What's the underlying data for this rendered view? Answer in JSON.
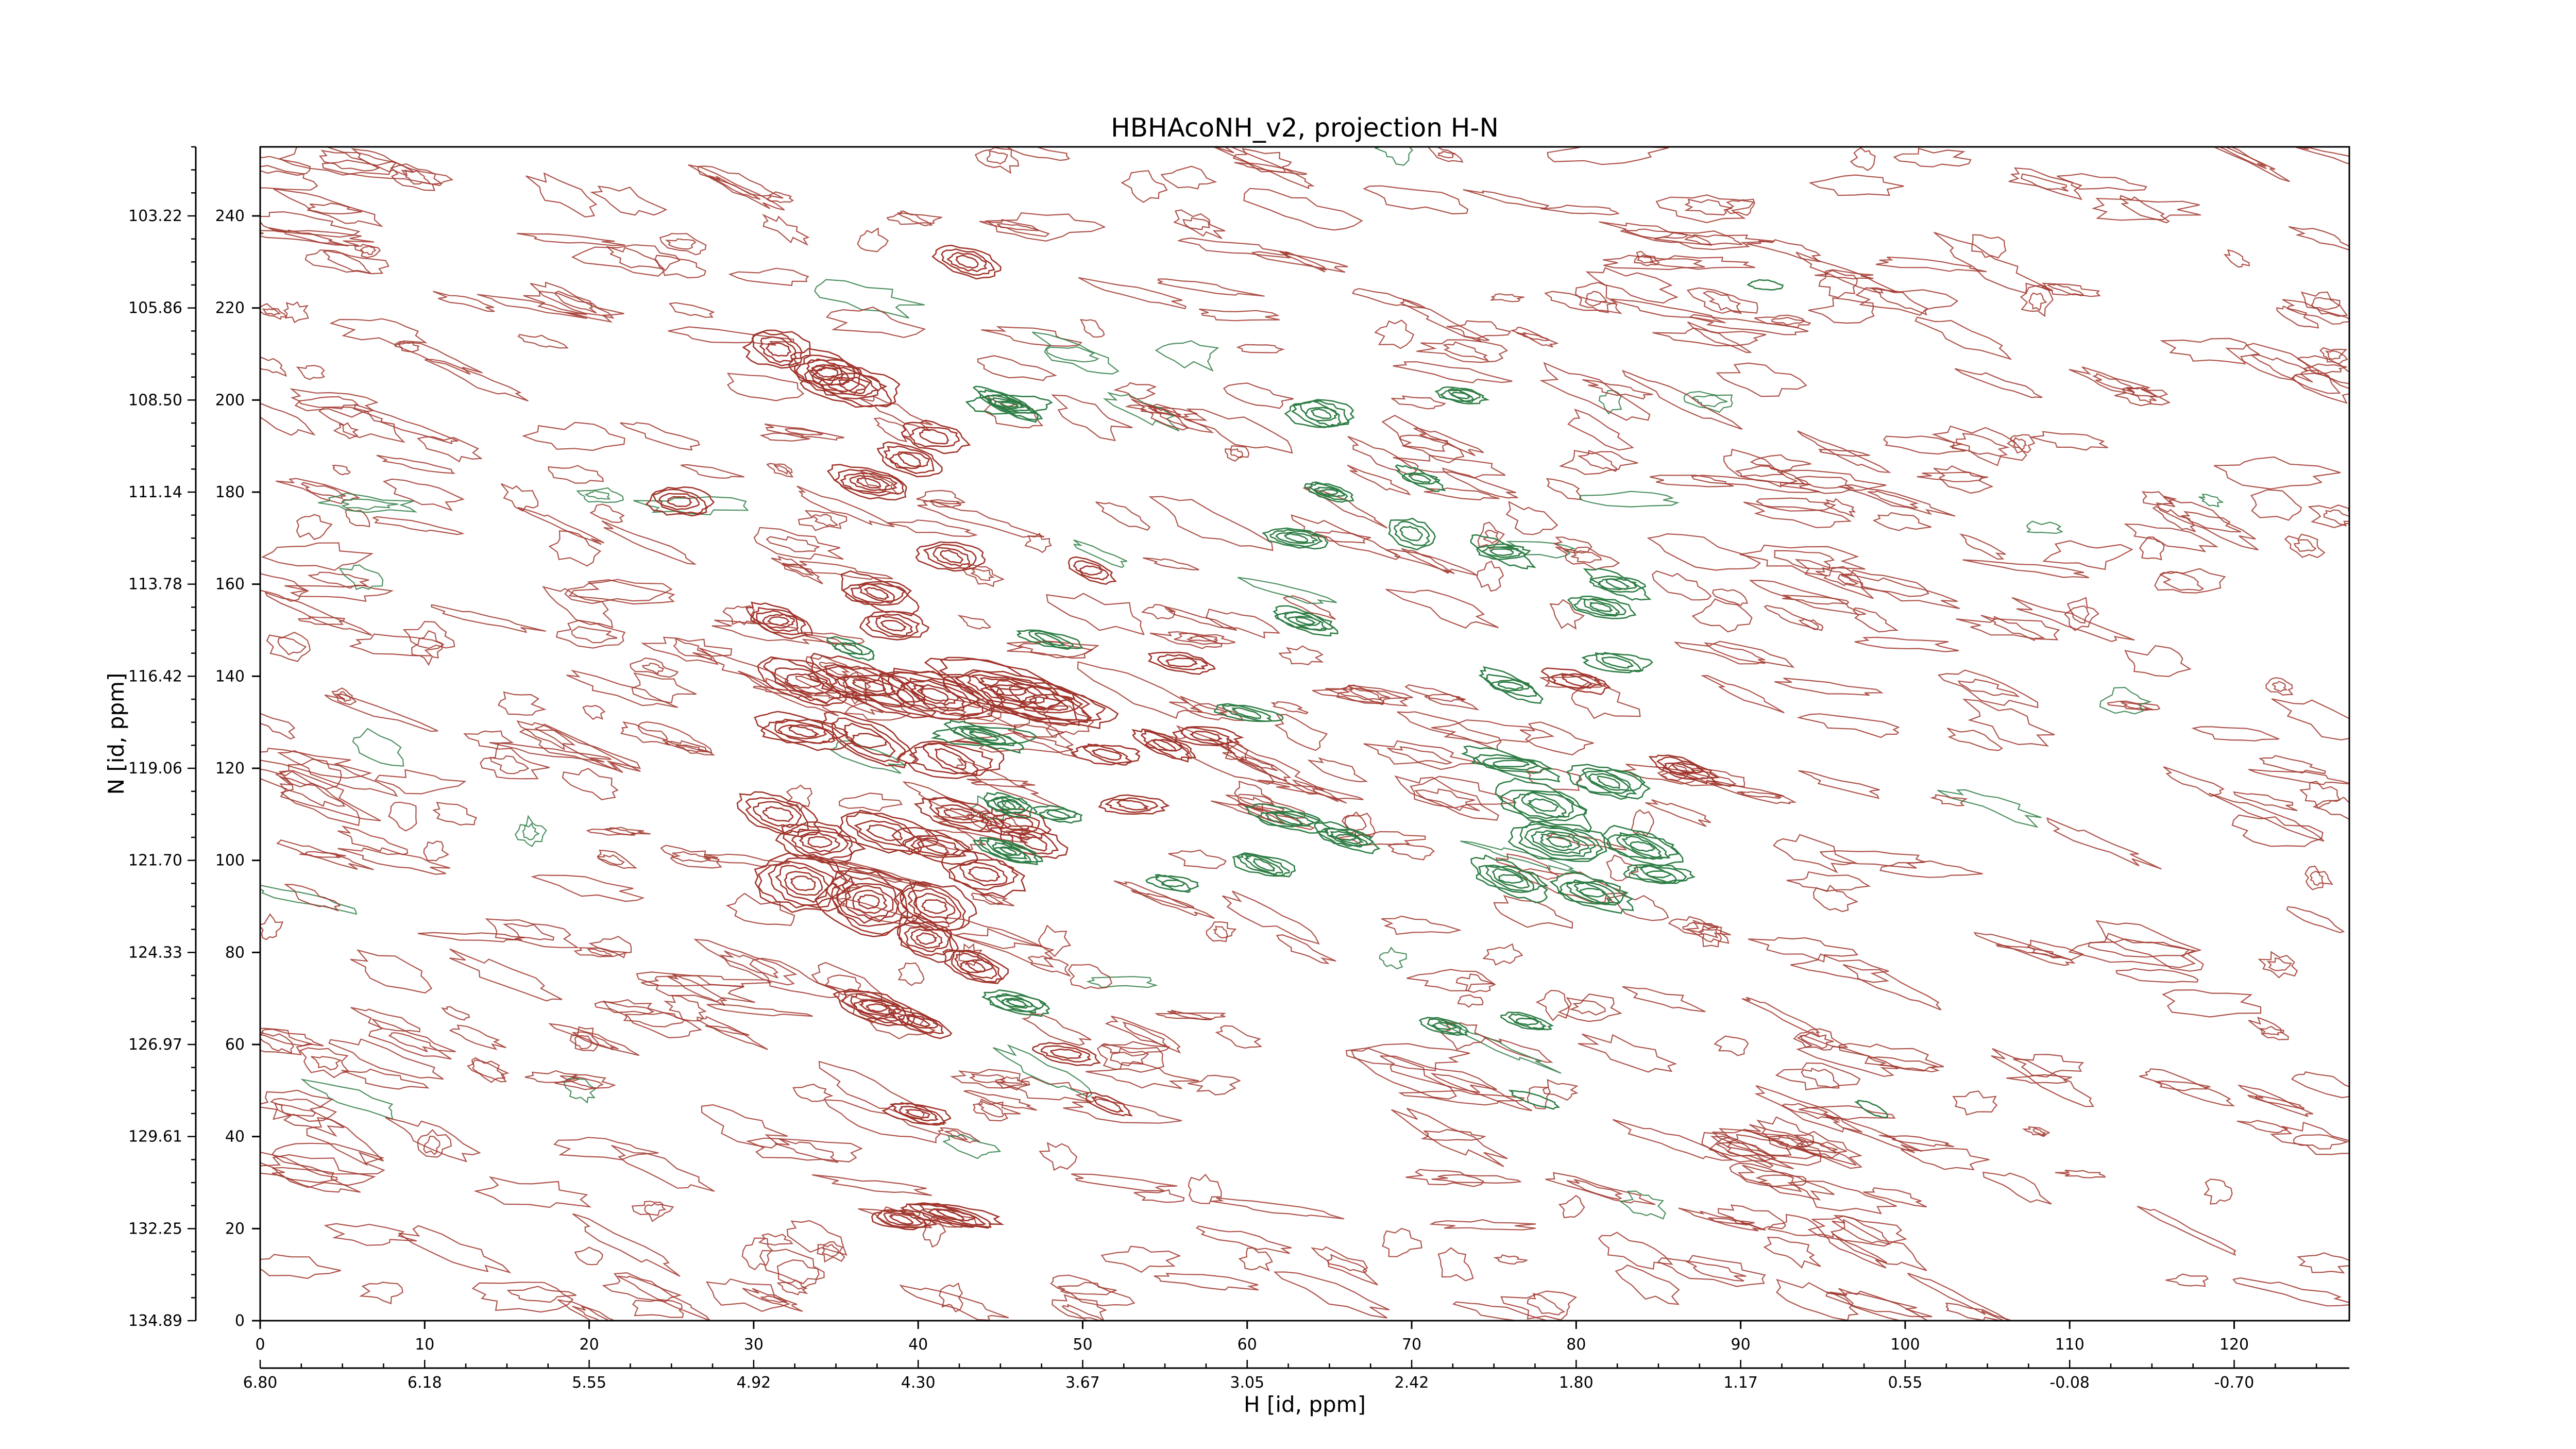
{
  "chart_data": {
    "type": "contour",
    "title": "HBHAcoNH_v2, projection H-N",
    "xlabel": "H [id, ppm]",
    "ylabel": "N [id, ppm]",
    "xlim": [
      0,
      127
    ],
    "ylim": [
      0,
      255
    ],
    "x_ticks": [
      0,
      10,
      20,
      30,
      40,
      50,
      60,
      70,
      80,
      90,
      100,
      110,
      120
    ],
    "x_tick_labels": [
      "0",
      "10",
      "20",
      "30",
      "40",
      "50",
      "60",
      "70",
      "80",
      "90",
      "100",
      "110",
      "120"
    ],
    "x_ppm_ticks": [
      0,
      10,
      20,
      30,
      40,
      50,
      60,
      70,
      80,
      90,
      100,
      110,
      120
    ],
    "x_ppm_labels": [
      "6.80",
      "6.18",
      "5.55",
      "4.92",
      "4.30",
      "3.67",
      "3.05",
      "2.42",
      "1.80",
      "1.17",
      "0.55",
      "-0.08",
      "-0.70"
    ],
    "y_ticks": [
      0,
      20,
      40,
      60,
      80,
      100,
      120,
      140,
      160,
      180,
      200,
      220,
      240
    ],
    "y_tick_labels": [
      "0",
      "20",
      "40",
      "60",
      "80",
      "100",
      "120",
      "140",
      "160",
      "180",
      "200",
      "220",
      "240"
    ],
    "y_ppm_ticks": [
      0,
      20,
      40,
      60,
      80,
      100,
      120,
      140,
      160,
      180,
      200,
      220,
      240
    ],
    "y_ppm_labels": [
      "134.89",
      "132.25",
      "129.61",
      "126.97",
      "124.33",
      "121.70",
      "119.06",
      "116.42",
      "113.78",
      "111.14",
      "108.50",
      "105.86",
      "103.22"
    ],
    "grid": false,
    "colors": {
      "positive": "#a0352c",
      "negative": "#2e7d45"
    },
    "series": [
      {
        "sign": "positive",
        "peaks": [
          [
            31.5,
            211,
            2.0,
            4,
            4
          ],
          [
            34.5,
            206,
            2.5,
            4,
            6
          ],
          [
            36,
            203,
            3,
            4,
            5
          ],
          [
            37,
            182,
            2.5,
            3,
            5
          ],
          [
            39.5,
            187,
            2,
            3,
            4
          ],
          [
            41,
            192,
            2,
            3,
            3
          ],
          [
            25.5,
            178,
            2,
            3,
            4
          ],
          [
            42,
            166,
            2,
            3,
            4
          ],
          [
            43,
            230,
            2,
            3,
            4
          ],
          [
            50.5,
            163,
            1.5,
            2,
            3
          ],
          [
            31.5,
            152,
            2,
            3,
            5
          ],
          [
            37.5,
            158,
            2.5,
            3,
            5
          ],
          [
            38.5,
            151,
            2,
            3,
            4
          ],
          [
            33,
            139,
            3,
            4,
            4
          ],
          [
            37,
            138,
            4,
            4,
            6
          ],
          [
            41,
            136,
            4,
            5,
            7
          ],
          [
            45.5,
            137,
            5,
            5,
            7
          ],
          [
            48,
            134,
            4,
            4,
            5
          ],
          [
            33,
            128,
            3,
            3,
            5
          ],
          [
            37,
            126,
            3,
            4,
            4
          ],
          [
            42,
            122,
            3,
            4,
            4
          ],
          [
            51.5,
            123,
            2,
            2,
            3
          ],
          [
            55,
            125,
            2,
            2,
            4
          ],
          [
            57.5,
            127,
            2,
            2,
            3
          ],
          [
            31.5,
            110,
            2.5,
            4,
            4
          ],
          [
            34,
            104,
            2.5,
            4,
            5
          ],
          [
            38,
            106,
            3,
            4,
            4
          ],
          [
            41,
            103,
            2.5,
            3,
            4
          ],
          [
            33,
            95,
            3,
            6,
            6
          ],
          [
            37,
            91,
            3,
            7,
            7
          ],
          [
            41,
            90,
            2.5,
            5,
            5
          ],
          [
            44,
            97,
            2.5,
            4,
            4
          ],
          [
            47,
            104,
            2,
            3,
            3
          ],
          [
            40.5,
            83,
            2,
            4,
            5
          ],
          [
            43.5,
            77,
            2,
            3,
            5
          ],
          [
            37.5,
            68,
            2.5,
            3,
            6
          ],
          [
            40,
            65,
            2,
            2,
            4
          ],
          [
            40,
            45,
            2,
            2,
            4
          ],
          [
            39,
            22,
            2,
            2,
            4
          ],
          [
            42,
            23,
            3,
            2,
            5
          ],
          [
            80,
            139,
            2,
            2,
            3
          ],
          [
            86.5,
            120,
            2,
            2,
            4
          ],
          [
            56,
            143,
            2,
            2,
            3
          ],
          [
            49,
            58,
            2,
            2,
            3
          ],
          [
            51.5,
            47,
            1.5,
            1.5,
            2
          ],
          [
            42.5,
            110,
            2.5,
            3,
            4
          ],
          [
            46,
            108,
            2,
            3,
            3
          ],
          [
            53,
            112,
            2,
            2,
            3
          ]
        ]
      },
      {
        "sign": "negative",
        "peaks": [
          [
            45.5,
            199,
            2.5,
            2,
            7
          ],
          [
            64.5,
            197,
            2,
            3,
            5
          ],
          [
            65,
            180,
            1.5,
            1.5,
            4
          ],
          [
            63,
            170,
            2,
            2,
            4
          ],
          [
            70,
            171,
            1.5,
            3,
            3
          ],
          [
            75.5,
            167,
            2,
            2,
            4
          ],
          [
            73,
            201,
            1.5,
            1.5,
            4
          ],
          [
            70.5,
            183,
            1.5,
            1.5,
            3
          ],
          [
            63.5,
            152,
            2,
            2,
            5
          ],
          [
            48,
            148,
            2,
            1.5,
            3
          ],
          [
            36,
            146,
            1.5,
            1.5,
            3
          ],
          [
            44,
            127,
            3,
            2,
            5
          ],
          [
            60,
            132,
            2,
            1.5,
            3
          ],
          [
            45.5,
            112,
            1.5,
            2,
            5
          ],
          [
            45.5,
            102,
            2,
            2,
            6
          ],
          [
            48.5,
            110,
            1.5,
            1.5,
            3
          ],
          [
            62.5,
            109,
            2.5,
            2,
            4
          ],
          [
            66,
            105,
            2,
            2,
            5
          ],
          [
            61,
            99,
            2,
            2,
            4
          ],
          [
            76,
            121,
            3,
            2,
            4
          ],
          [
            78,
            112,
            3,
            4,
            5
          ],
          [
            82,
            117,
            2.5,
            3,
            5
          ],
          [
            79,
            104,
            3,
            4,
            6
          ],
          [
            84,
            103,
            2.5,
            3,
            5
          ],
          [
            76,
            96,
            2.5,
            3,
            5
          ],
          [
            81,
            93,
            2.5,
            3,
            5
          ],
          [
            85,
            97,
            2,
            2,
            4
          ],
          [
            76,
            138,
            2,
            2,
            4
          ],
          [
            82.5,
            143,
            2,
            2,
            3
          ],
          [
            81.5,
            155,
            2,
            2,
            4
          ],
          [
            82.5,
            160,
            2,
            2,
            4
          ],
          [
            55.5,
            95,
            1.5,
            1.5,
            3
          ],
          [
            46,
            69,
            2,
            2,
            5
          ],
          [
            72,
            64,
            1.5,
            1.5,
            3
          ],
          [
            77,
            65,
            1.5,
            1.5,
            3
          ],
          [
            77.5,
            48,
            1.5,
            1,
            1
          ],
          [
            98,
            46,
            1,
            1,
            1
          ],
          [
            91.5,
            225,
            1,
            1,
            1
          ]
        ]
      }
    ]
  }
}
